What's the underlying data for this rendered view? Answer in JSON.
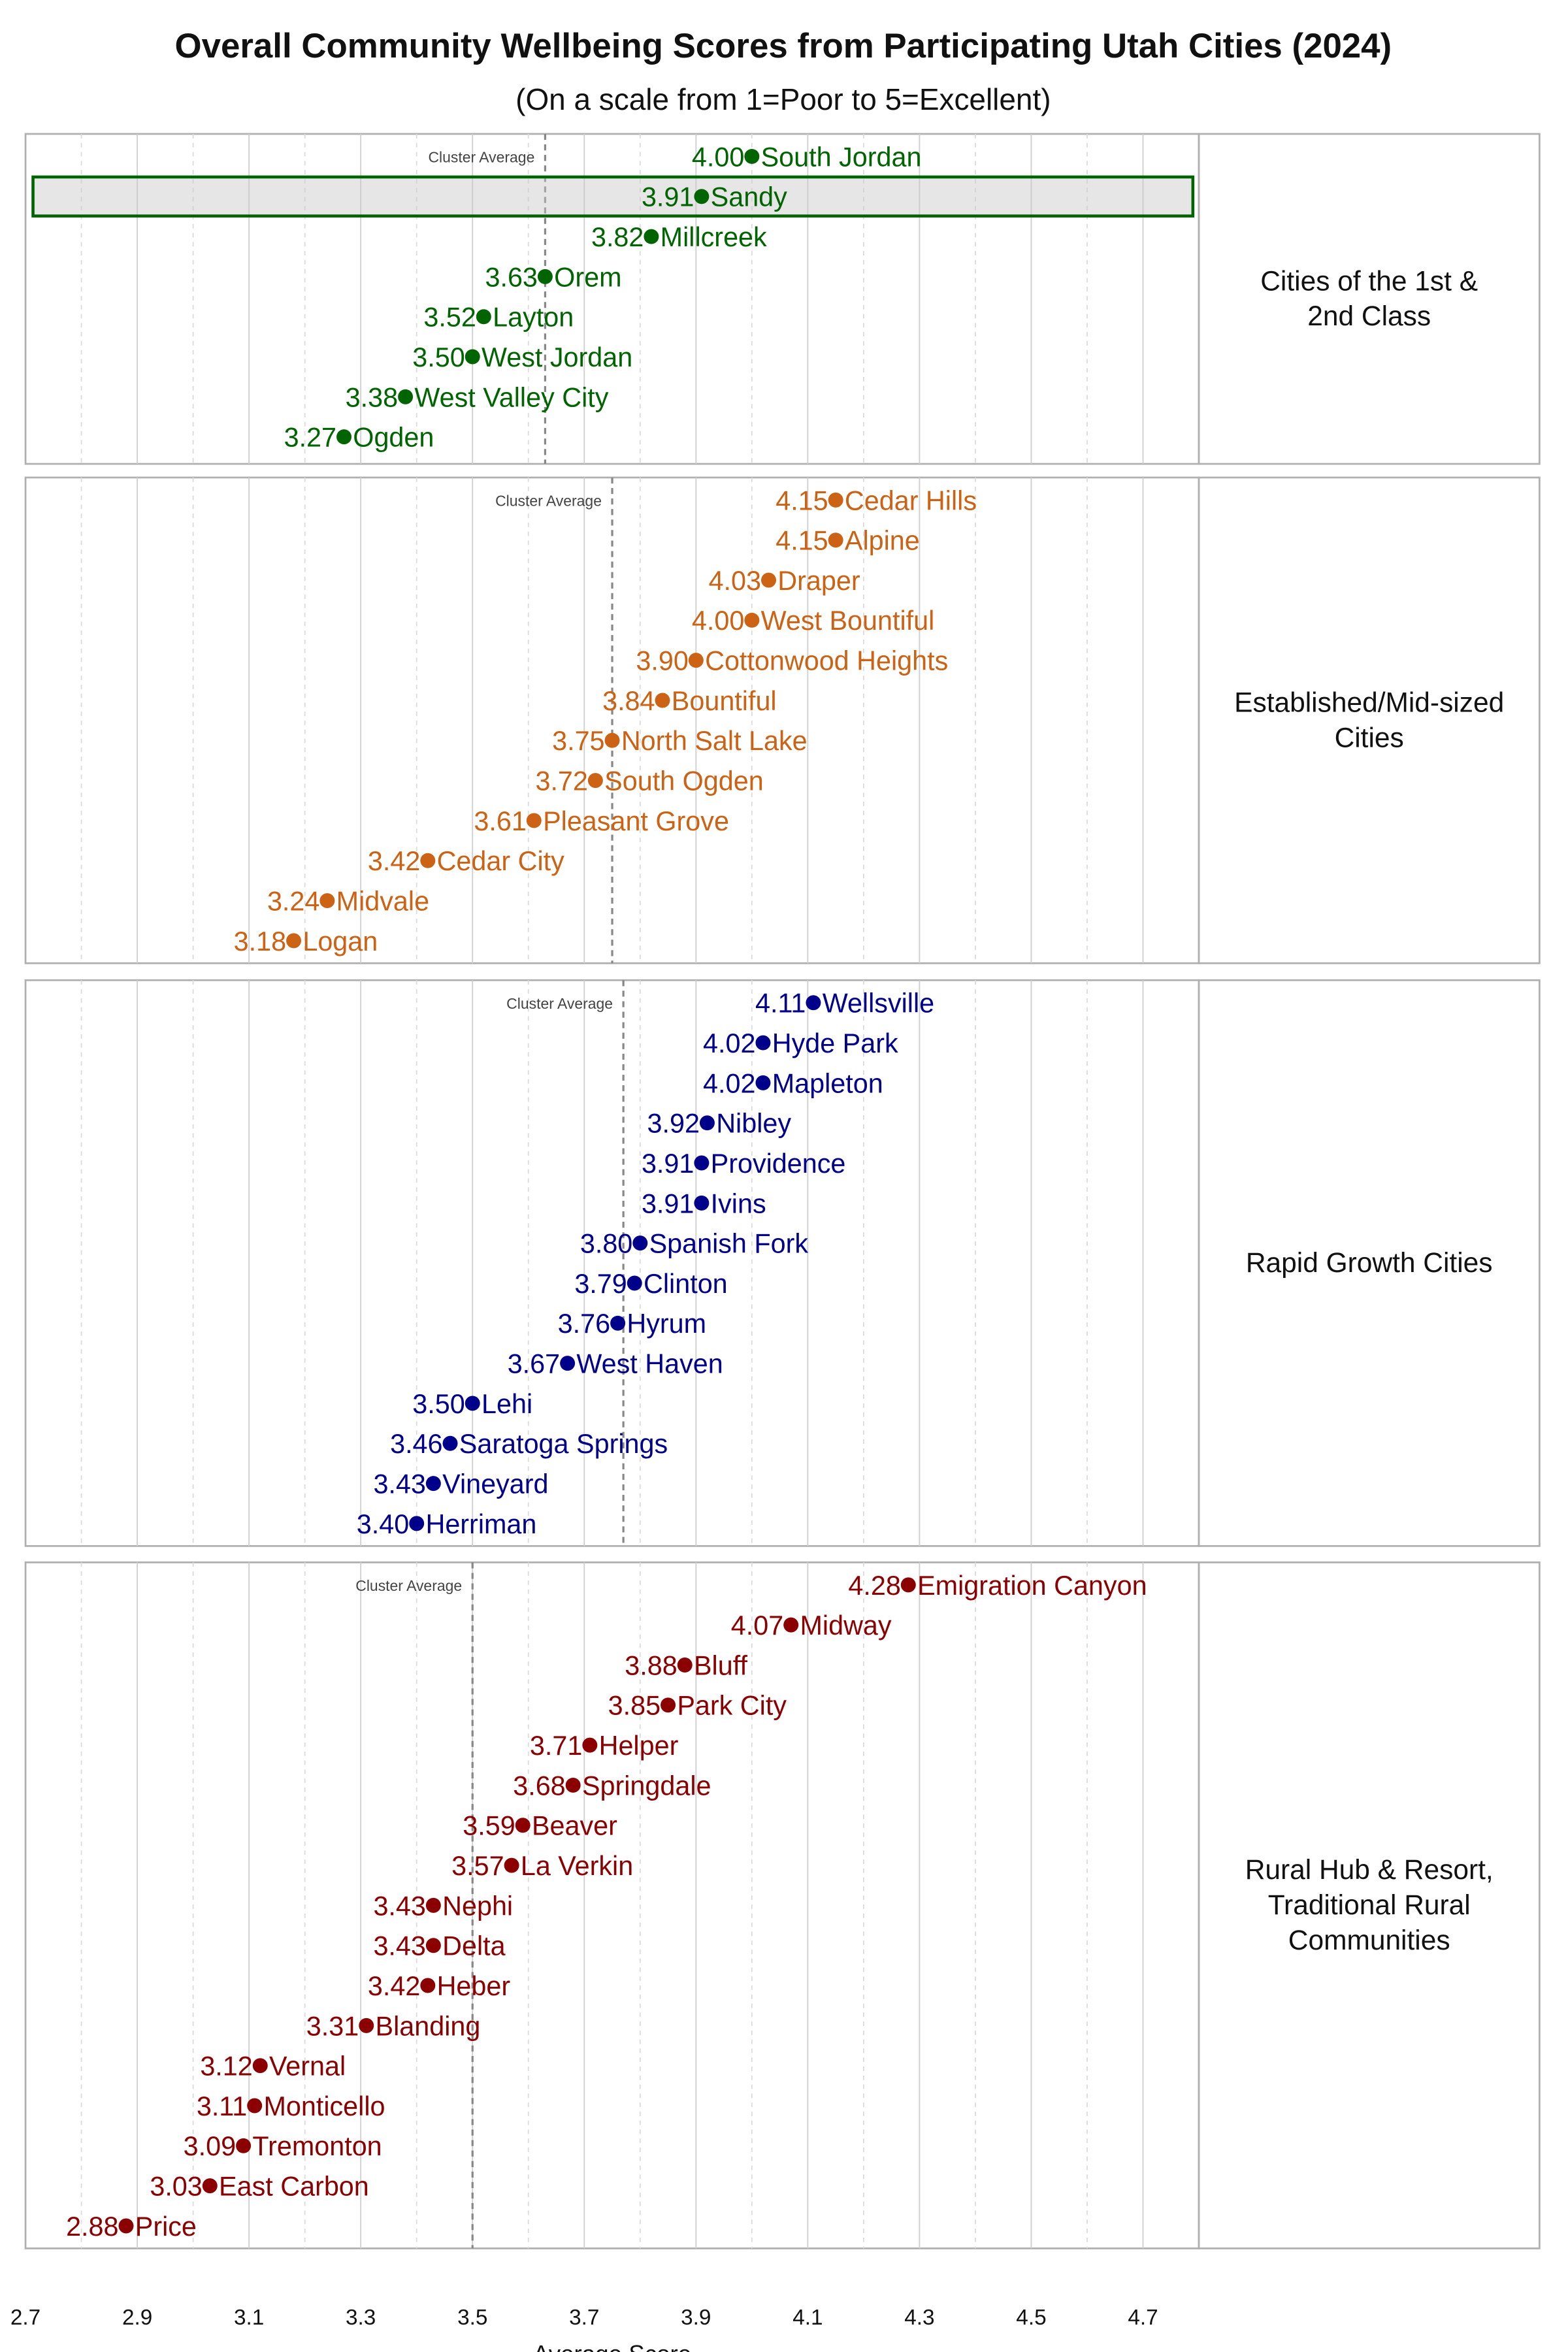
{
  "chart_data": {
    "type": "scatter",
    "title": "Overall Community Wellbeing Scores from Participating Utah Cities (2024)",
    "subtitle": "(On a scale from 1=Poor to 5=Excellent)",
    "xlabel": "Average Score",
    "xlim": [
      2.7,
      4.8
    ],
    "xticks": [
      "2.7",
      "2.9",
      "3.1",
      "3.3",
      "3.5",
      "3.7",
      "3.9",
      "4.1",
      "4.3",
      "4.5",
      "4.7"
    ],
    "grid": true,
    "average_label": "Cluster Average",
    "highlight": "Sandy",
    "panels": [
      {
        "name": "Cities of the 1st & 2nd Class",
        "name_lines": [
          "Cities of the 1st &",
          "2nd Class"
        ],
        "color": "#006400",
        "average": 3.63,
        "cities": [
          "South Jordan",
          "Sandy",
          "Millcreek",
          "Orem",
          "Layton",
          "West Jordan",
          "West Valley City",
          "Ogden"
        ],
        "values": [
          4.0,
          3.91,
          3.82,
          3.63,
          3.52,
          3.5,
          3.38,
          3.27
        ]
      },
      {
        "name": "Established/Mid-sized Cities",
        "name_lines": [
          "Established/Mid-sized",
          "Cities"
        ],
        "color": "#CC6214",
        "average": 3.75,
        "cities": [
          "Cedar Hills",
          "Alpine",
          "Draper",
          "West Bountiful",
          "Cottonwood Heights",
          "Bountiful",
          "North Salt Lake",
          "South Ogden",
          "Pleasant Grove",
          "Cedar City",
          "Midvale",
          "Logan"
        ],
        "values": [
          4.15,
          4.15,
          4.03,
          4.0,
          3.9,
          3.84,
          3.75,
          3.72,
          3.61,
          3.42,
          3.24,
          3.18
        ]
      },
      {
        "name": "Rapid Growth Cities",
        "name_lines": [
          "Rapid Growth Cities"
        ],
        "color": "#00008B",
        "average": 3.77,
        "cities": [
          "Wellsville",
          "Hyde Park",
          "Mapleton",
          "Nibley",
          "Providence",
          "Ivins",
          "Spanish Fork",
          "Clinton",
          "Hyrum",
          "West Haven",
          "Lehi",
          "Saratoga Springs",
          "Vineyard",
          "Herriman"
        ],
        "values": [
          4.11,
          4.02,
          4.02,
          3.92,
          3.91,
          3.91,
          3.8,
          3.79,
          3.76,
          3.67,
          3.5,
          3.46,
          3.43,
          3.4
        ]
      },
      {
        "name": "Rural Hub & Resort, Traditional Rural Communities",
        "name_lines": [
          "Rural Hub & Resort,",
          "Traditional Rural",
          "Communities"
        ],
        "color": "#8B0000",
        "average": 3.5,
        "cities": [
          "Emigration Canyon",
          "Midway",
          "Bluff",
          "Park City",
          "Helper",
          "Springdale",
          "Beaver",
          "La Verkin",
          "Nephi",
          "Delta",
          "Heber",
          "Blanding",
          "Vernal",
          "Monticello",
          "Tremonton",
          "East Carbon",
          "Price"
        ],
        "values": [
          4.28,
          4.07,
          3.88,
          3.85,
          3.71,
          3.68,
          3.59,
          3.57,
          3.43,
          3.43,
          3.42,
          3.31,
          3.12,
          3.11,
          3.09,
          3.03,
          2.88
        ]
      }
    ]
  }
}
